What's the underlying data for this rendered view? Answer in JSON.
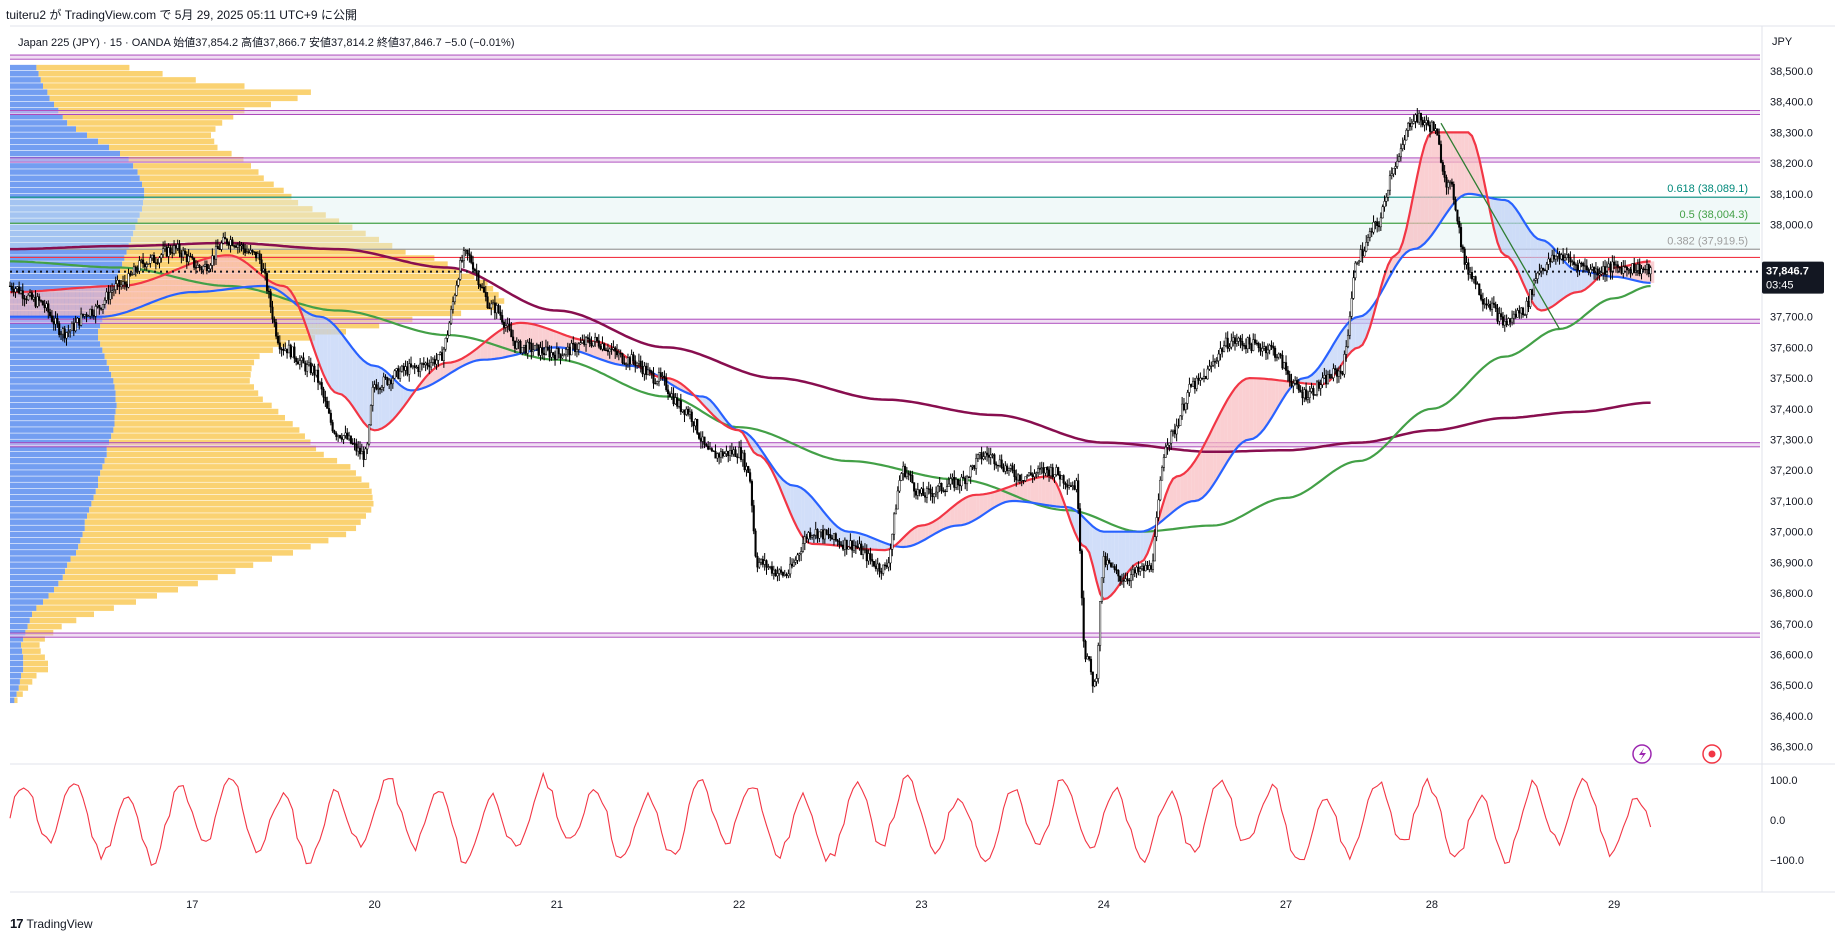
{
  "header": {
    "text": "tuiteru2 が TradingView.com で 5月 29, 2025 05:11 UTC+9 に公開"
  },
  "symbol_line": {
    "text": "Japan 225 (JPY) · 15 · OANDA  始値37,854.2  高値37,866.7  安値37,814.2  終値37,846.7  −5.0 (−0.01%)"
  },
  "currency": "JPY",
  "footer": {
    "logo": "17",
    "brand": "TradingView"
  },
  "last_price": {
    "value": 37846.7,
    "label": "37,846.7",
    "countdown": "03:45",
    "color": "#131722"
  },
  "colors": {
    "candles": "#000000",
    "ema_fast": "#f23645",
    "ema_mid": "#2962ff",
    "ema_slow": "#43a047",
    "ema_long": "#880e4f",
    "purple_lines": "#9c27b0",
    "teal": "#00897b",
    "vp_blue": "#5b8def",
    "vp_orange": "#f9c74f",
    "oscillator": "#f23645"
  },
  "chart_data": {
    "type": "line",
    "title": "",
    "xlabel": "",
    "ylabel": "",
    "y_axis_labels": [
      "38,500.0",
      "38,400.0",
      "38,300.0",
      "38,200.0",
      "38,100.0",
      "38,000.0",
      "37,900.0",
      "37,800.0",
      "37,700.0",
      "37,600.0",
      "37,500.0",
      "37,400.0",
      "37,300.0",
      "37,200.0",
      "37,100.0",
      "37,000.0",
      "36,900.0",
      "36,800.0",
      "36,700.0",
      "36,600.0",
      "36,500.0",
      "36,400.0",
      "36,300.0"
    ],
    "y_axis_values": [
      38500,
      38400,
      38300,
      38200,
      38100,
      38000,
      37900,
      37800,
      37700,
      37600,
      37500,
      37400,
      37300,
      37200,
      37100,
      37000,
      36900,
      36800,
      36700,
      36600,
      36500,
      36400,
      36300
    ],
    "ylim": [
      36250,
      38640
    ],
    "x_labels": [
      "17",
      "20",
      "21",
      "22",
      "23",
      "24",
      "27",
      "28",
      "29"
    ],
    "x_values": [
      1.0,
      2.0,
      3.0,
      4.0,
      5.0,
      6.0,
      7.0,
      7.8,
      8.8
    ],
    "xlim": [
      0.0,
      9.6
    ],
    "horizontal_levels": [
      {
        "price": 38545,
        "color": "#9c27b0"
      },
      {
        "price": 38365,
        "color": "#9c27b0"
      },
      {
        "price": 38210,
        "color": "#9c27b0"
      },
      {
        "price": 38089.1,
        "color": "#00897b",
        "label": "0.618 (38,089.1)"
      },
      {
        "price": 38004.3,
        "color": "#43a047",
        "label": "0.5 (38,004.3)"
      },
      {
        "price": 37919.5,
        "color": "#9e9e9e",
        "label": "0.382 (37,919.5)"
      },
      {
        "price": 37893,
        "color": "#f23645"
      },
      {
        "price": 37685,
        "color": "#9c27b0"
      },
      {
        "price": 37283,
        "color": "#9c27b0"
      },
      {
        "price": 36663,
        "color": "#9c27b0"
      }
    ],
    "price_series": {
      "name": "",
      "x": [
        0.0,
        0.15,
        0.3,
        0.45,
        0.6,
        0.75,
        0.9,
        1.05,
        1.2,
        1.35,
        1.5,
        1.65,
        1.8,
        1.95,
        2.0,
        2.2,
        2.35,
        2.5,
        2.65,
        2.8,
        3.0,
        3.2,
        3.4,
        3.55,
        3.7,
        3.85,
        4.0,
        4.05,
        4.1,
        4.25,
        4.4,
        4.6,
        4.8,
        4.9,
        5.0,
        5.2,
        5.35,
        5.55,
        5.7,
        5.85,
        5.9,
        5.95,
        6.0,
        6.1,
        6.25,
        6.35,
        6.5,
        6.7,
        6.9,
        7.1,
        7.3,
        7.4,
        7.5,
        7.6,
        7.7,
        7.8,
        7.9,
        8.0,
        8.1,
        8.2,
        8.3,
        8.4,
        8.5,
        8.6,
        8.7,
        8.8,
        8.9,
        9.0
      ],
      "values": [
        37800,
        37750,
        37650,
        37720,
        37800,
        37880,
        37920,
        37860,
        37950,
        37900,
        37600,
        37530,
        37320,
        37250,
        37480,
        37530,
        37560,
        37900,
        37730,
        37600,
        37580,
        37620,
        37560,
        37500,
        37400,
        37250,
        37260,
        37200,
        36900,
        36860,
        37000,
        36960,
        36880,
        37200,
        37120,
        37160,
        37250,
        37180,
        37200,
        37150,
        36600,
        36500,
        36900,
        36850,
        36880,
        37300,
        37480,
        37620,
        37600,
        37450,
        37520,
        37900,
        38000,
        38200,
        38350,
        38320,
        38120,
        37850,
        37750,
        37680,
        37720,
        37860,
        37900,
        37870,
        37850,
        37860,
        37860,
        37850
      ]
    },
    "ema_fast": {
      "x": [
        0.0,
        0.6,
        1.2,
        1.5,
        1.8,
        2.0,
        2.4,
        2.8,
        3.2,
        3.6,
        4.0,
        4.1,
        4.4,
        4.8,
        5.0,
        5.3,
        5.7,
        5.9,
        6.0,
        6.2,
        6.4,
        6.8,
        7.2,
        7.4,
        7.6,
        7.8,
        8.0,
        8.2,
        8.4,
        8.6,
        8.8,
        9.0
      ],
      "values": [
        37780,
        37800,
        37900,
        37800,
        37450,
        37330,
        37550,
        37680,
        37620,
        37500,
        37330,
        37250,
        36960,
        36940,
        37020,
        37120,
        37180,
        36950,
        36780,
        36900,
        37180,
        37500,
        37480,
        37600,
        37900,
        38300,
        38300,
        37900,
        37720,
        37780,
        37860,
        37880
      ]
    },
    "ema_mid": {
      "x": [
        0.0,
        0.5,
        1.0,
        1.4,
        1.7,
        2.0,
        2.2,
        2.6,
        3.0,
        3.4,
        3.8,
        4.0,
        4.3,
        4.6,
        4.9,
        5.2,
        5.5,
        5.8,
        6.0,
        6.2,
        6.5,
        6.8,
        7.1,
        7.4,
        7.7,
        8.0,
        8.2,
        8.4,
        8.6,
        8.8,
        9.0
      ],
      "values": [
        37700,
        37700,
        37780,
        37800,
        37700,
        37540,
        37460,
        37560,
        37600,
        37540,
        37440,
        37330,
        37150,
        37000,
        36950,
        37020,
        37100,
        37080,
        37000,
        37000,
        37100,
        37300,
        37500,
        37700,
        37920,
        38100,
        38080,
        37950,
        37850,
        37830,
        37810
      ]
    },
    "ema_slow": {
      "x": [
        0.0,
        0.6,
        1.2,
        1.8,
        2.4,
        3.0,
        3.6,
        4.0,
        4.6,
        5.2,
        5.8,
        6.2,
        6.6,
        7.0,
        7.4,
        7.8,
        8.2,
        8.5,
        8.8,
        9.0
      ],
      "values": [
        37880,
        37860,
        37800,
        37720,
        37640,
        37560,
        37440,
        37340,
        37230,
        37170,
        37070,
        37000,
        37020,
        37110,
        37230,
        37400,
        37570,
        37660,
        37760,
        37800
      ]
    },
    "ema_long": {
      "x": [
        0.0,
        0.6,
        1.2,
        1.8,
        2.4,
        3.0,
        3.6,
        4.2,
        4.8,
        5.4,
        6.0,
        6.6,
        7.0,
        7.4,
        7.8,
        8.2,
        8.6,
        9.0
      ],
      "values": [
        37920,
        37930,
        37940,
        37920,
        37860,
        37720,
        37600,
        37500,
        37430,
        37380,
        37290,
        37260,
        37265,
        37290,
        37330,
        37370,
        37390,
        37420
      ]
    },
    "oscillator": {
      "name": "",
      "y_axis_labels": [
        "100.0",
        "0.0",
        "−100.0"
      ],
      "y_axis_values": [
        100,
        0,
        -100
      ],
      "ylim": [
        -125,
        125
      ],
      "count": 360
    },
    "volume_profile": {
      "price_start": 36450,
      "price_step": 20,
      "blue": [
        4,
        6,
        8,
        9,
        10,
        12,
        12,
        12,
        11,
        10,
        12,
        14,
        16,
        18,
        20,
        24,
        30,
        35,
        40,
        44,
        48,
        50,
        52,
        55,
        60,
        62,
        64,
        66,
        68,
        68,
        70,
        72,
        74,
        76,
        78,
        80,
        80,
        82,
        84,
        86,
        88,
        88,
        90,
        92,
        94,
        95,
        95,
        96,
        97,
        96,
        96,
        95,
        94,
        92,
        90,
        88,
        86,
        84,
        82,
        80,
        80,
        82,
        84,
        86,
        88,
        90,
        92,
        94,
        96,
        98,
        100,
        102,
        104,
        106,
        108,
        110,
        112,
        114,
        116,
        118,
        120,
        121,
        122,
        122,
        120,
        118,
        116,
        112,
        108,
        100,
        90,
        80,
        70,
        60,
        52,
        48,
        44,
        40,
        36,
        34,
        30,
        28,
        26,
        24,
        22,
        22,
        20,
        20,
        18,
        16,
        14,
        12,
        10,
        8
      ],
      "orange": [
        2,
        4,
        6,
        8,
        10,
        16,
        16,
        14,
        12,
        12,
        14,
        18,
        22,
        30,
        40,
        50,
        60,
        70,
        80,
        90,
        100,
        110,
        120,
        130,
        140,
        150,
        160,
        170,
        175,
        178,
        180,
        182,
        182,
        180,
        178,
        175,
        170,
        165,
        160,
        150,
        140,
        135,
        130,
        125,
        120,
        115,
        110,
        105,
        100,
        95,
        92,
        90,
        88,
        90,
        92,
        95,
        100,
        110,
        120,
        140,
        160,
        180,
        200,
        230,
        250,
        255,
        250,
        245,
        240,
        230,
        220,
        210,
        200,
        180,
        170,
        160,
        150,
        140,
        130,
        120,
        110,
        100,
        95,
        90,
        85,
        80,
        78,
        76,
        74,
        72,
        70,
        75,
        80,
        90,
        100,
        110,
        120,
        140,
        160,
        170,
        130,
        100,
        80,
        60,
        40,
        30,
        25,
        20,
        18,
        16,
        14,
        12,
        10,
        8
      ]
    }
  }
}
